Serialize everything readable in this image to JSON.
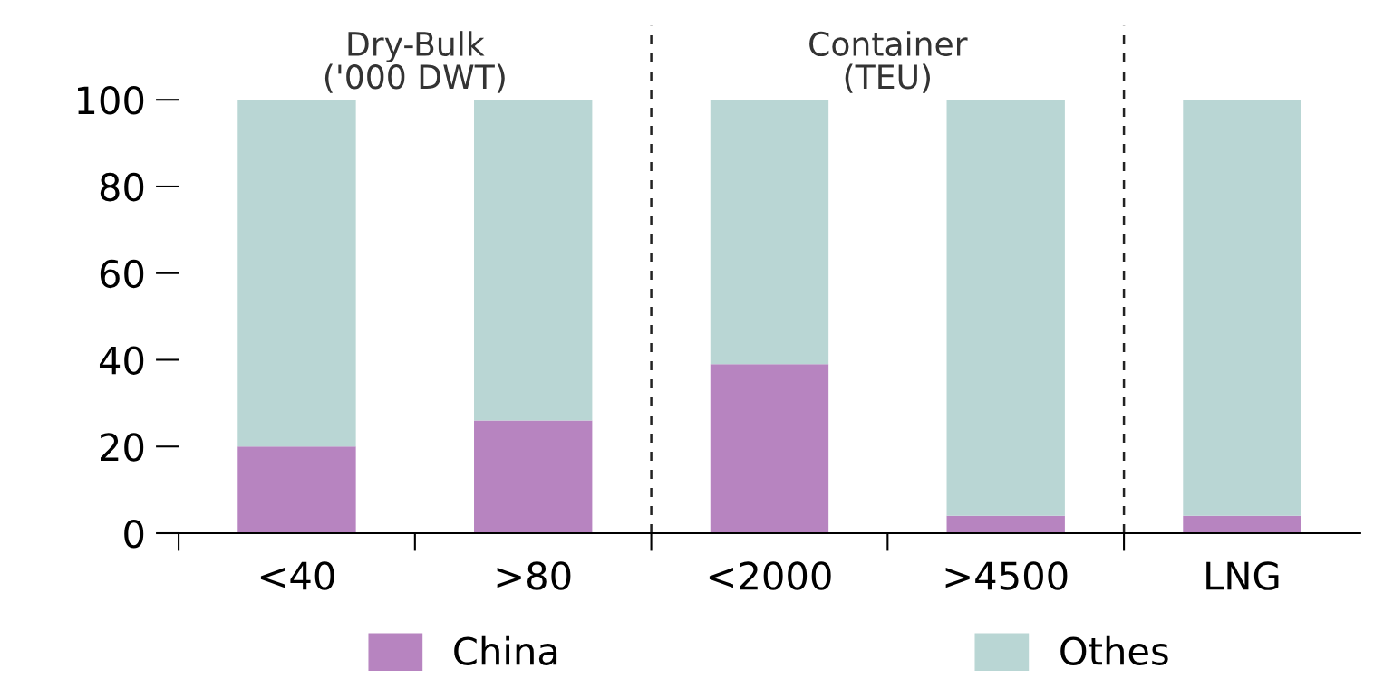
{
  "chart_data": {
    "type": "bar",
    "stacked": true,
    "categories": [
      "<40",
      ">80",
      "<2000",
      ">4500",
      "LNG"
    ],
    "series": [
      {
        "name": "China",
        "color": "#b784c0",
        "values": [
          20,
          26,
          39,
          4,
          4
        ]
      },
      {
        "name": "Othes",
        "color": "#b9d6d4",
        "values": [
          80,
          74,
          61,
          96,
          96
        ]
      }
    ],
    "ylim": [
      0,
      100
    ],
    "yticks": [
      0,
      20,
      40,
      60,
      80,
      100
    ],
    "annotations": [
      "Dry-Bulk\n('000 DWT)",
      "Container\n(TEU)"
    ],
    "grid": false,
    "legend": "bottom"
  }
}
